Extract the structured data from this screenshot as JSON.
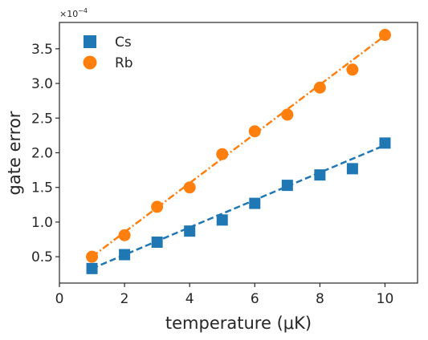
{
  "chart_data": {
    "type": "scatter",
    "xlabel": "temperature (μK)",
    "ylabel": "gate error",
    "y_offset_label": "×10",
    "y_offset_exponent": "−4",
    "xlim": [
      0,
      11
    ],
    "ylim": [
      0.12,
      3.88
    ],
    "x_ticks": [
      0,
      2,
      4,
      6,
      8,
      10
    ],
    "x_tick_labels": [
      "0",
      "2",
      "4",
      "6",
      "8",
      "10"
    ],
    "y_ticks": [
      0.5,
      1.0,
      1.5,
      2.0,
      2.5,
      3.0,
      3.5
    ],
    "y_tick_labels": [
      "0.5",
      "1.0",
      "1.5",
      "2.0",
      "2.5",
      "3.0",
      "3.5"
    ],
    "grid": false,
    "legend_position": "top-left",
    "series": [
      {
        "name": "Cs",
        "marker": "square",
        "color": "#1f77b4",
        "fit_style": "dashed",
        "x": [
          1,
          2,
          3,
          4,
          5,
          6,
          7,
          8,
          9,
          10
        ],
        "y": [
          0.33,
          0.53,
          0.71,
          0.87,
          1.03,
          1.27,
          1.53,
          1.68,
          1.77,
          2.14
        ],
        "fit": [
          [
            1,
            0.33
          ],
          [
            10,
            2.11
          ]
        ]
      },
      {
        "name": "Rb",
        "marker": "circle",
        "color": "#ff7f0e",
        "fit_style": "dash-dot",
        "x": [
          1,
          2,
          3,
          4,
          5,
          6,
          7,
          8,
          9,
          10
        ],
        "y": [
          0.5,
          0.81,
          1.22,
          1.5,
          1.98,
          2.31,
          2.55,
          2.94,
          3.2,
          3.7
        ],
        "fit": [
          [
            1,
            0.5
          ],
          [
            10,
            3.69
          ]
        ]
      }
    ]
  }
}
